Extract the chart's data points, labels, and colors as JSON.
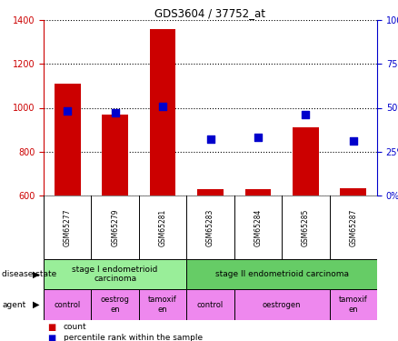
{
  "title": "GDS3604 / 37752_at",
  "samples": [
    "GSM65277",
    "GSM65279",
    "GSM65281",
    "GSM65283",
    "GSM65284",
    "GSM65285",
    "GSM65287"
  ],
  "count_values": [
    1110,
    970,
    1360,
    630,
    630,
    910,
    635
  ],
  "count_base": 600,
  "percentile_values": [
    48,
    47,
    51,
    32,
    33,
    46,
    31
  ],
  "ylim_left": [
    600,
    1400
  ],
  "ylim_right": [
    0,
    100
  ],
  "yticks_left": [
    600,
    800,
    1000,
    1200,
    1400
  ],
  "yticks_right": [
    0,
    25,
    50,
    75,
    100
  ],
  "bar_color": "#cc0000",
  "dot_color": "#0000cc",
  "bar_width": 0.55,
  "dot_size": 35,
  "disease_state_groups": [
    {
      "label": "stage I endometrioid\ncarcinoma",
      "start": 0,
      "end": 3,
      "color": "#99ee99"
    },
    {
      "label": "stage II endometrioid carcinoma",
      "start": 3,
      "end": 7,
      "color": "#66cc66"
    }
  ],
  "agent_groups": [
    {
      "label": "control",
      "start": 0,
      "end": 1,
      "color": "#ee88ee"
    },
    {
      "label": "oestrog\nen",
      "start": 1,
      "end": 2,
      "color": "#ee88ee"
    },
    {
      "label": "tamoxif\nen",
      "start": 2,
      "end": 3,
      "color": "#ee88ee"
    },
    {
      "label": "control",
      "start": 3,
      "end": 4,
      "color": "#ee88ee"
    },
    {
      "label": "oestrogen",
      "start": 4,
      "end": 6,
      "color": "#ee88ee"
    },
    {
      "label": "tamoxif\nen",
      "start": 6,
      "end": 7,
      "color": "#ee88ee"
    }
  ],
  "left_axis_color": "#cc0000",
  "right_axis_color": "#0000cc",
  "grid_color": "#000000",
  "background_color": "#ffffff",
  "tick_area_color": "#cccccc",
  "label_row1": "disease state",
  "label_row2": "agent",
  "legend_count_label": "count",
  "legend_percentile_label": "percentile rank within the sample"
}
